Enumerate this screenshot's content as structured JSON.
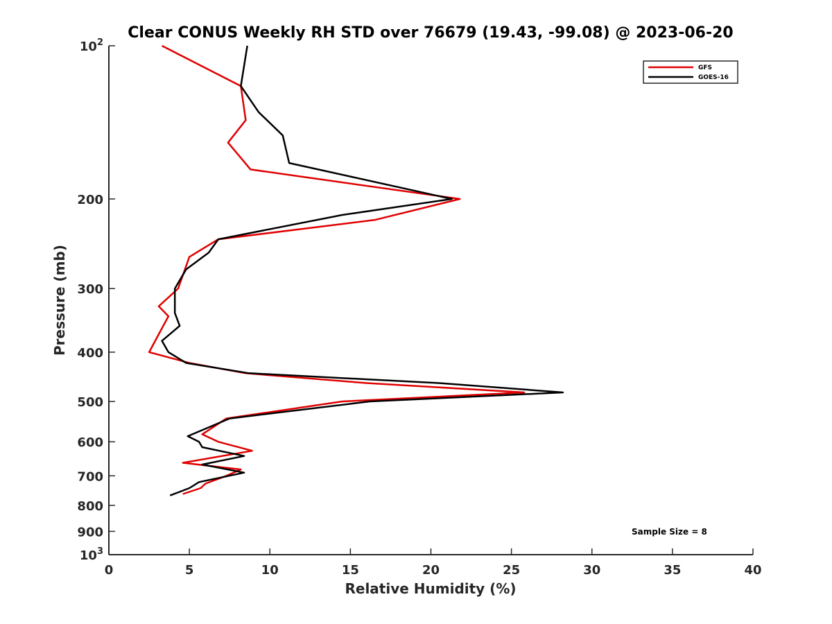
{
  "chart_data": {
    "type": "line",
    "title": "Clear CONUS Weekly RH STD over 76679 (19.43, -99.08) @ 2023-06-20",
    "xlabel": "Relative Humidity (%)",
    "ylabel": "Pressure (mb)",
    "xlim": [
      0,
      40
    ],
    "ylim": [
      100,
      1000
    ],
    "y_scale": "log",
    "y_reversed": true,
    "x_ticks": [
      0,
      5,
      10,
      15,
      20,
      25,
      30,
      35,
      40
    ],
    "y_ticks": [
      {
        "value": 100,
        "base": "10",
        "exp": "2"
      },
      {
        "value": 200,
        "label": "200"
      },
      {
        "value": 300,
        "label": "300"
      },
      {
        "value": 400,
        "label": "400"
      },
      {
        "value": 500,
        "label": "500"
      },
      {
        "value": 600,
        "label": "600"
      },
      {
        "value": 700,
        "label": "700"
      },
      {
        "value": 800,
        "label": "800"
      },
      {
        "value": 900,
        "label": "900"
      },
      {
        "value": 1000,
        "base": "10",
        "exp": "3"
      }
    ],
    "legend_position": "top-right",
    "grid": false,
    "series": [
      {
        "name": "GFS",
        "color": "#e00000",
        "points": [
          [
            3.3,
            100
          ],
          [
            8.2,
            120
          ],
          [
            8.5,
            140
          ],
          [
            7.4,
            155
          ],
          [
            8.8,
            175
          ],
          [
            21.8,
            200
          ],
          [
            16.5,
            220
          ],
          [
            6.8,
            240
          ],
          [
            5.0,
            260
          ],
          [
            4.3,
            300
          ],
          [
            3.1,
            325
          ],
          [
            3.7,
            340
          ],
          [
            2.5,
            400
          ],
          [
            5.0,
            420
          ],
          [
            8.5,
            440
          ],
          [
            16.0,
            460
          ],
          [
            25.8,
            480
          ],
          [
            14.5,
            500
          ],
          [
            7.3,
            540
          ],
          [
            5.8,
            580
          ],
          [
            6.8,
            600
          ],
          [
            8.9,
            625
          ],
          [
            4.6,
            660
          ],
          [
            8.2,
            680
          ],
          [
            7.3,
            700
          ],
          [
            6.0,
            725
          ],
          [
            5.7,
            740
          ],
          [
            4.6,
            760
          ]
        ]
      },
      {
        "name": "GOES-16",
        "color": "#000000",
        "points": [
          [
            8.6,
            100
          ],
          [
            8.2,
            120
          ],
          [
            9.3,
            135
          ],
          [
            10.8,
            150
          ],
          [
            11.2,
            170
          ],
          [
            21.3,
            200
          ],
          [
            14.5,
            215
          ],
          [
            6.8,
            240
          ],
          [
            6.2,
            255
          ],
          [
            4.8,
            275
          ],
          [
            4.1,
            300
          ],
          [
            4.1,
            335
          ],
          [
            4.4,
            355
          ],
          [
            3.3,
            380
          ],
          [
            3.7,
            400
          ],
          [
            4.8,
            420
          ],
          [
            8.7,
            440
          ],
          [
            20.5,
            460
          ],
          [
            28.2,
            480
          ],
          [
            16.2,
            500
          ],
          [
            7.5,
            540
          ],
          [
            4.9,
            585
          ],
          [
            5.6,
            600
          ],
          [
            5.8,
            615
          ],
          [
            8.4,
            640
          ],
          [
            5.8,
            665
          ],
          [
            8.4,
            690
          ],
          [
            5.6,
            720
          ],
          [
            5.0,
            740
          ],
          [
            3.8,
            765
          ]
        ]
      }
    ],
    "annotation": "Sample Size = 8"
  }
}
